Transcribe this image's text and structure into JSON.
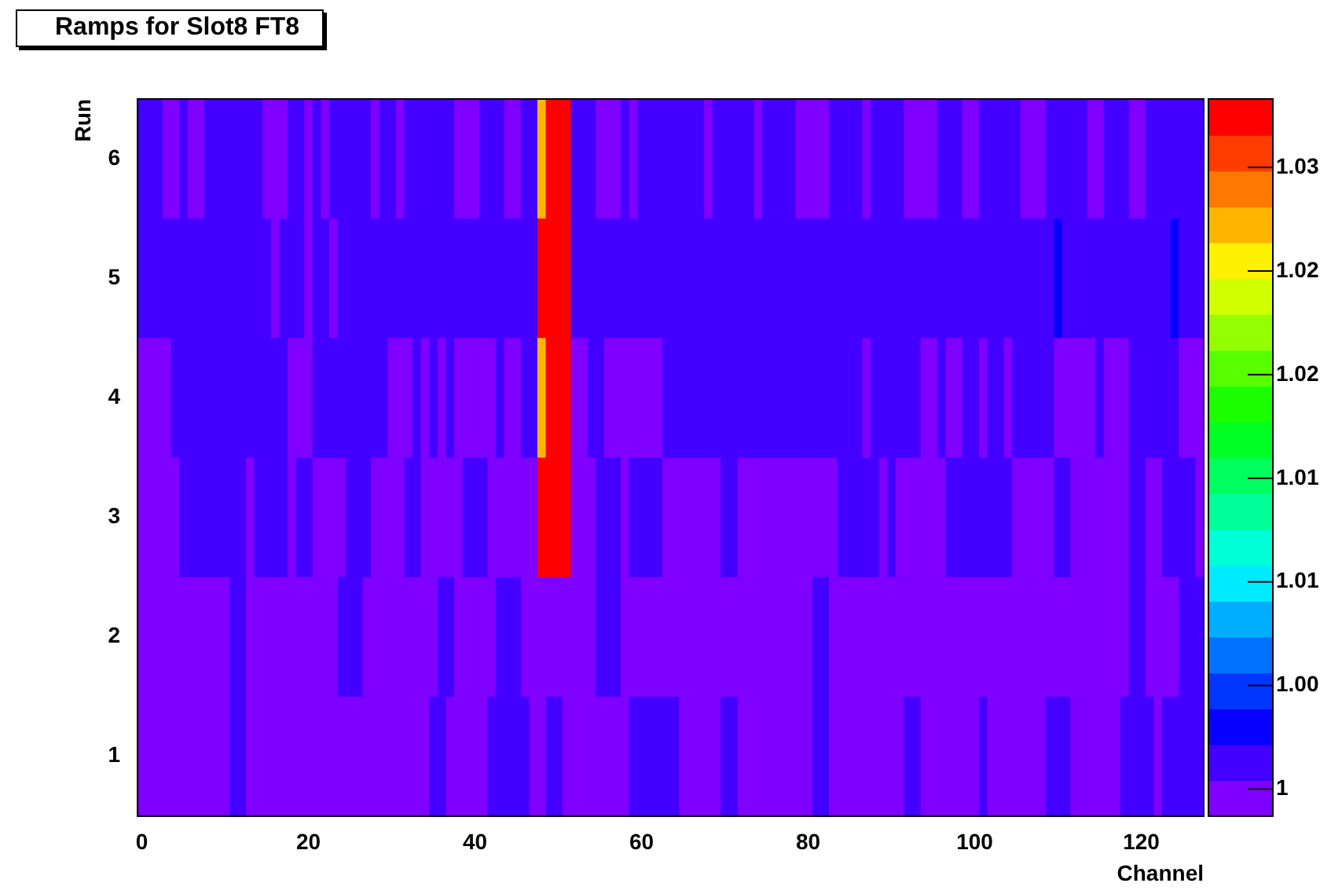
{
  "chart_data": {
    "type": "heatmap",
    "title": "Ramps for Slot8 FT8",
    "xlabel": "Channel",
    "ylabel": "Run",
    "x": [
      0,
      1,
      2,
      3,
      4,
      5,
      6,
      7,
      8,
      9,
      10,
      11,
      12,
      13,
      14,
      15,
      16,
      17,
      18,
      19,
      20,
      21,
      22,
      23,
      24,
      25,
      26,
      27,
      28,
      29,
      30,
      31,
      32,
      33,
      34,
      35,
      36,
      37,
      38,
      39,
      40,
      41,
      42,
      43,
      44,
      45,
      46,
      47,
      48,
      49,
      50,
      51,
      52,
      53,
      54,
      55,
      56,
      57,
      58,
      59,
      60,
      61,
      62,
      63,
      64,
      65,
      66,
      67,
      68,
      69,
      70,
      71,
      72,
      73,
      74,
      75,
      76,
      77,
      78,
      79,
      80,
      81,
      82,
      83,
      84,
      85,
      86,
      87,
      88,
      89,
      90,
      91,
      92,
      93,
      94,
      95,
      96,
      97,
      98,
      99,
      100,
      101,
      102,
      103,
      104,
      105,
      106,
      107,
      108,
      109,
      110,
      111,
      112,
      113,
      114,
      115,
      116,
      117,
      118,
      119,
      120,
      121,
      122,
      123,
      124,
      125,
      126,
      127
    ],
    "xlim": [
      -0.5,
      127.5
    ],
    "xticks": [
      0,
      20,
      40,
      60,
      80,
      100,
      120
    ],
    "y_categories": [
      "6",
      "5",
      "4",
      "3",
      "2",
      "1"
    ],
    "cells": [
      [
        1.001,
        1.001,
        1.001,
        1,
        1,
        1.001,
        1,
        1,
        1.001,
        1.001,
        1.001,
        1.001,
        1.001,
        1.001,
        1.001,
        1,
        1,
        1,
        1.001,
        1.001,
        1,
        1.001,
        1,
        1.001,
        1.001,
        1.001,
        1.001,
        1.001,
        1,
        1.001,
        1.001,
        1,
        1.001,
        1.001,
        1.001,
        1.001,
        1.001,
        1.001,
        1,
        1,
        1,
        1.001,
        1.001,
        1.001,
        1,
        1,
        1.001,
        1.001,
        1.028,
        1.032,
        1.032,
        1.032,
        1.001,
        1.001,
        1.001,
        1,
        1,
        1,
        1.001,
        1,
        1.001,
        1.001,
        1.001,
        1.001,
        1.001,
        1.001,
        1.001,
        1.001,
        1,
        1.001,
        1.001,
        1.001,
        1.001,
        1.001,
        1,
        1.001,
        1.001,
        1.001,
        1.001,
        1,
        1,
        1,
        1,
        1.001,
        1.001,
        1.001,
        1.001,
        1,
        1.001,
        1.001,
        1.001,
        1.001,
        1,
        1,
        1,
        1,
        1.001,
        1.001,
        1.001,
        1,
        1,
        1.001,
        1.001,
        1.001,
        1.001,
        1.001,
        1,
        1,
        1,
        1.001,
        1.001,
        1.001,
        1.001,
        1.001,
        1,
        1,
        1.001,
        1.001,
        1.001,
        1,
        1,
        1.001,
        1.001,
        1.001,
        1.001,
        1.001,
        1.001,
        1.001
      ],
      [
        1.001,
        1.001,
        1.001,
        1.001,
        1.001,
        1.001,
        1.001,
        1.001,
        1.001,
        1.001,
        1.001,
        1.001,
        1.001,
        1.001,
        1.001,
        1.001,
        1,
        1.001,
        1.001,
        1.001,
        1,
        1.001,
        1.001,
        1,
        1.001,
        1.001,
        1.001,
        1.001,
        1.001,
        1.001,
        1.001,
        1.001,
        1.001,
        1.001,
        1.001,
        1.001,
        1.001,
        1.001,
        1.001,
        1.001,
        1.001,
        1.001,
        1.001,
        1.001,
        1.001,
        1.001,
        1.001,
        1.001,
        1.032,
        1.032,
        1.032,
        1.032,
        1.001,
        1.001,
        1.001,
        1.001,
        1.001,
        1.001,
        1.001,
        1.001,
        1.001,
        1.001,
        1.001,
        1.001,
        1.001,
        1.001,
        1.001,
        1.001,
        1.001,
        1.001,
        1.001,
        1.001,
        1.001,
        1.001,
        1.001,
        1.001,
        1.001,
        1.001,
        1.001,
        1.001,
        1.001,
        1.001,
        1.001,
        1.001,
        1.001,
        1.001,
        1.001,
        1.001,
        1.001,
        1.001,
        1.001,
        1.001,
        1.001,
        1.001,
        1.001,
        1.001,
        1.001,
        1.001,
        1.001,
        1.001,
        1.001,
        1.001,
        1.001,
        1.001,
        1.001,
        1.001,
        1.001,
        1.001,
        1.001,
        1.001,
        1.003,
        1.001,
        1.001,
        1.001,
        1.001,
        1.001,
        1.001,
        1.001,
        1.001,
        1.001,
        1.001,
        1.001,
        1.001,
        1.001,
        1.003,
        1.001,
        1.001,
        1.001
      ],
      [
        1,
        1,
        1,
        1,
        1.001,
        1.001,
        1.001,
        1.001,
        1.001,
        1.001,
        1.001,
        1.001,
        1.001,
        1.001,
        1.001,
        1.001,
        1.001,
        1.001,
        1,
        1,
        1,
        1.001,
        1.001,
        1.001,
        1.001,
        1.001,
        1.001,
        1.001,
        1.001,
        1.001,
        1,
        1,
        1,
        1.001,
        1,
        1.001,
        1,
        1.001,
        1,
        1,
        1,
        1,
        1,
        1.001,
        1,
        1,
        1.001,
        1.001,
        1.028,
        1.032,
        1.032,
        1.032,
        1,
        1,
        1.001,
        1.001,
        1,
        1,
        1,
        1,
        1,
        1,
        1,
        1.001,
        1.001,
        1.001,
        1.001,
        1.001,
        1.001,
        1.001,
        1.001,
        1.001,
        1.001,
        1.001,
        1.001,
        1.001,
        1.001,
        1.001,
        1.001,
        1.001,
        1.001,
        1.001,
        1.001,
        1.001,
        1.001,
        1.001,
        1.001,
        1,
        1.001,
        1.001,
        1.001,
        1.001,
        1.001,
        1.001,
        1,
        1,
        1.001,
        1,
        1,
        1.001,
        1.001,
        1,
        1.001,
        1.001,
        1,
        1.001,
        1.001,
        1.001,
        1.001,
        1.001,
        1,
        1,
        1,
        1,
        1,
        1.001,
        1,
        1,
        1,
        1.001,
        1.001,
        1.001,
        1.001,
        1.001,
        1.001,
        1,
        1,
        1
      ],
      [
        1,
        1,
        1,
        1,
        1,
        1.001,
        1.001,
        1.001,
        1.001,
        1.001,
        1.001,
        1.001,
        1.001,
        1,
        1.001,
        1.001,
        1.001,
        1.001,
        1,
        1.001,
        1.001,
        1,
        1,
        1,
        1,
        1.001,
        1.001,
        1.001,
        1,
        1,
        1,
        1,
        1.001,
        1.001,
        1,
        1,
        1,
        1,
        1,
        1.001,
        1.001,
        1.001,
        1,
        1,
        1,
        1,
        1,
        1,
        1.032,
        1.032,
        1.032,
        1.032,
        1,
        1,
        1,
        1.001,
        1.001,
        1.001,
        1,
        1.001,
        1.001,
        1.001,
        1.001,
        1,
        1,
        1,
        1,
        1,
        1,
        1,
        1.001,
        1.001,
        1,
        1,
        1,
        1,
        1,
        1,
        1,
        1,
        1,
        1,
        1,
        1,
        1.001,
        1.001,
        1.001,
        1.001,
        1.001,
        1,
        1.001,
        1,
        1,
        1,
        1,
        1,
        1,
        1.001,
        1.001,
        1.001,
        1.001,
        1.001,
        1.001,
        1.001,
        1.001,
        1,
        1,
        1,
        1,
        1,
        1.001,
        1.001,
        1,
        1,
        1,
        1,
        1,
        1,
        1,
        1.001,
        1.001,
        1,
        1,
        1.001,
        1.001,
        1.001,
        1.001,
        1
      ],
      [
        1,
        1,
        1,
        1,
        1,
        1,
        1,
        1,
        1,
        1,
        1,
        1.001,
        1.001,
        1,
        1,
        1,
        1,
        1,
        1,
        1,
        1,
        1,
        1,
        1,
        1.001,
        1.001,
        1.001,
        1,
        1,
        1,
        1,
        1,
        1,
        1,
        1,
        1,
        1.001,
        1.001,
        1,
        1,
        1,
        1,
        1,
        1.001,
        1.001,
        1.001,
        1,
        1,
        1,
        1,
        1,
        1,
        1,
        1,
        1,
        1.001,
        1.001,
        1.001,
        1,
        1,
        1,
        1,
        1,
        1,
        1,
        1,
        1,
        1,
        1,
        1,
        1,
        1,
        1,
        1,
        1,
        1,
        1,
        1,
        1,
        1,
        1,
        1.001,
        1.001,
        1,
        1,
        1,
        1,
        1,
        1,
        1,
        1,
        1,
        1,
        1,
        1,
        1,
        1,
        1,
        1,
        1,
        1,
        1,
        1,
        1,
        1,
        1,
        1,
        1,
        1,
        1,
        1,
        1,
        1,
        1,
        1,
        1,
        1,
        1,
        1,
        1.001,
        1.001,
        1,
        1,
        1,
        1,
        1.001,
        1.001,
        1.001
      ],
      [
        1,
        1,
        1,
        1,
        1,
        1,
        1,
        1,
        1,
        1,
        1,
        1.001,
        1.001,
        1,
        1,
        1,
        1,
        1,
        1,
        1,
        1,
        1,
        1,
        1,
        1,
        1,
        1,
        1,
        1,
        1,
        1,
        1,
        1,
        1,
        1,
        1.001,
        1.001,
        1,
        1,
        1,
        1,
        1,
        1.001,
        1.001,
        1.001,
        1.001,
        1.001,
        1,
        1,
        1.001,
        1.001,
        1,
        1,
        1,
        1,
        1,
        1,
        1,
        1,
        1.001,
        1.001,
        1.001,
        1.001,
        1.001,
        1.001,
        1,
        1,
        1,
        1,
        1,
        1.001,
        1.001,
        1,
        1,
        1,
        1,
        1,
        1,
        1,
        1,
        1,
        1.001,
        1.001,
        1,
        1,
        1,
        1,
        1,
        1,
        1,
        1,
        1,
        1.001,
        1.001,
        1,
        1,
        1,
        1,
        1,
        1,
        1,
        1.001,
        1,
        1,
        1,
        1,
        1,
        1,
        1,
        1.001,
        1.001,
        1.001,
        1,
        1,
        1,
        1,
        1,
        1,
        1.001,
        1.001,
        1.001,
        1.001,
        1,
        1.001,
        1.001,
        1.001,
        1.001,
        1.001
      ]
    ],
    "clim": [
      0.9987,
      1.0333
    ],
    "cticks": [
      {
        "value": 1,
        "label": "1"
      },
      {
        "value": 1.005,
        "label": "1.00"
      },
      {
        "value": 1.01,
        "label": "1.01"
      },
      {
        "value": 1.015,
        "label": "1.01"
      },
      {
        "value": 1.02,
        "label": "1.02"
      },
      {
        "value": 1.025,
        "label": "1.02"
      },
      {
        "value": 1.03,
        "label": "1.03"
      }
    ]
  }
}
